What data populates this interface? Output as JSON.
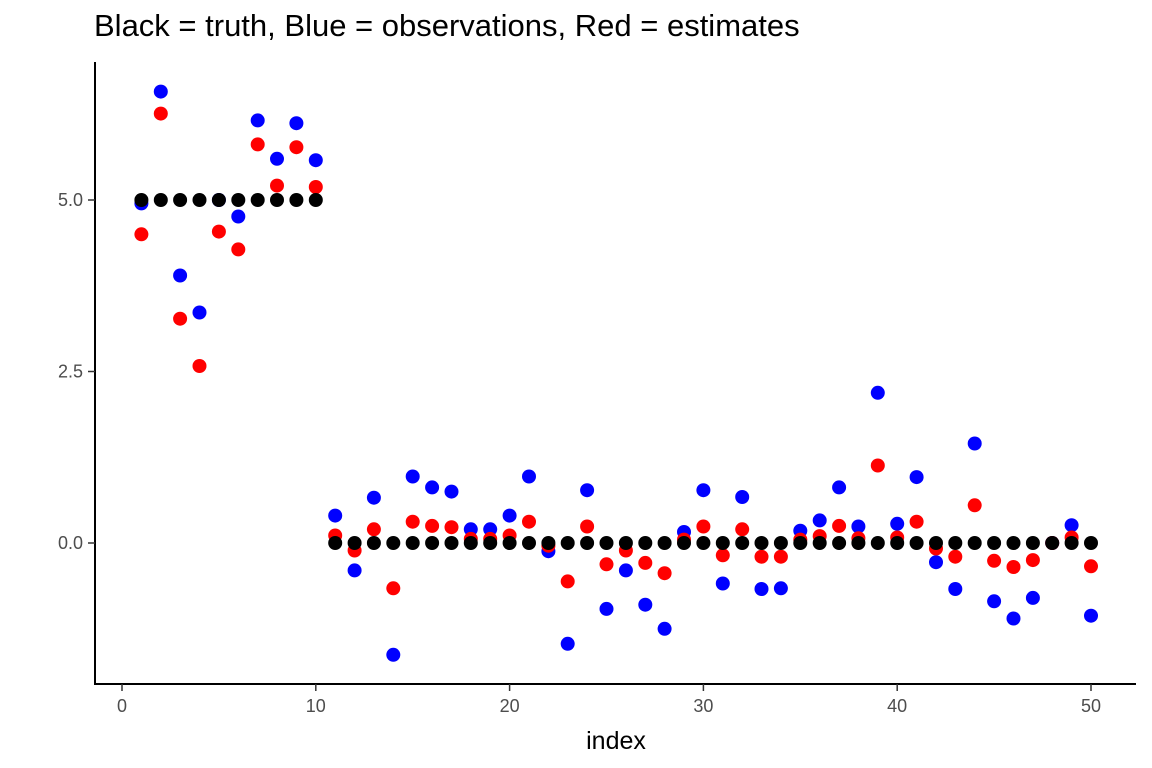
{
  "chart_data": {
    "type": "scatter",
    "title": "Black = truth, Blue = observations, Red = estimates",
    "xlabel": "index",
    "ylabel": "",
    "xlim": [
      -0.5,
      51.5
    ],
    "ylim": [
      -2.0,
      7.0
    ],
    "x_ticks": [
      0,
      10,
      20,
      30,
      40,
      50
    ],
    "x_tick_labels": [
      "0",
      "10",
      "20",
      "30",
      "40",
      "50"
    ],
    "y_ticks": [
      0.0,
      2.5,
      5.0
    ],
    "y_tick_labels": [
      "0.0",
      "2.5",
      "5.0"
    ],
    "grid": false,
    "legend": "none",
    "x": [
      1,
      2,
      3,
      4,
      5,
      6,
      7,
      8,
      9,
      10,
      11,
      12,
      13,
      14,
      15,
      16,
      17,
      18,
      19,
      20,
      21,
      22,
      23,
      24,
      25,
      26,
      27,
      28,
      29,
      30,
      31,
      32,
      33,
      34,
      35,
      36,
      37,
      38,
      39,
      40,
      41,
      42,
      43,
      44,
      45,
      46,
      47,
      48,
      49,
      50
    ],
    "series": [
      {
        "color": "#0000ff",
        "values": [
          4.95,
          6.58,
          3.9,
          3.36,
          5.0,
          4.76,
          6.16,
          5.6,
          6.12,
          5.58,
          0.4,
          -0.4,
          0.66,
          -1.63,
          0.97,
          0.81,
          0.75,
          0.2,
          0.2,
          0.4,
          0.97,
          -0.12,
          -1.47,
          0.77,
          -0.96,
          -0.4,
          -0.9,
          -1.25,
          0.16,
          0.77,
          -0.59,
          0.67,
          -0.67,
          -0.66,
          0.18,
          0.33,
          0.81,
          0.24,
          2.19,
          0.28,
          0.96,
          -0.28,
          -0.67,
          1.45,
          -0.85,
          -1.1,
          -0.8,
          0.0,
          0.26,
          -1.06
        ]
      },
      {
        "color": "#ff0000",
        "values": [
          4.5,
          6.26,
          3.27,
          2.58,
          4.54,
          4.28,
          5.81,
          5.21,
          5.77,
          5.19,
          0.11,
          -0.11,
          0.2,
          -0.66,
          0.31,
          0.25,
          0.23,
          0.06,
          0.06,
          0.11,
          0.31,
          -0.04,
          -0.56,
          0.24,
          -0.31,
          -0.11,
          -0.29,
          -0.44,
          0.05,
          0.24,
          -0.18,
          0.2,
          -0.2,
          -0.2,
          0.05,
          0.1,
          0.25,
          0.07,
          1.13,
          0.08,
          0.31,
          -0.08,
          -0.2,
          0.55,
          -0.26,
          -0.35,
          -0.25,
          0.0,
          0.08,
          -0.34
        ]
      },
      {
        "color": "#000000",
        "values": [
          5,
          5,
          5,
          5,
          5,
          5,
          5,
          5,
          5,
          5,
          0,
          0,
          0,
          0,
          0,
          0,
          0,
          0,
          0,
          0,
          0,
          0,
          0,
          0,
          0,
          0,
          0,
          0,
          0,
          0,
          0,
          0,
          0,
          0,
          0,
          0,
          0,
          0,
          0,
          0,
          0,
          0,
          0,
          0,
          0,
          0,
          0,
          0,
          0,
          0
        ]
      }
    ]
  }
}
